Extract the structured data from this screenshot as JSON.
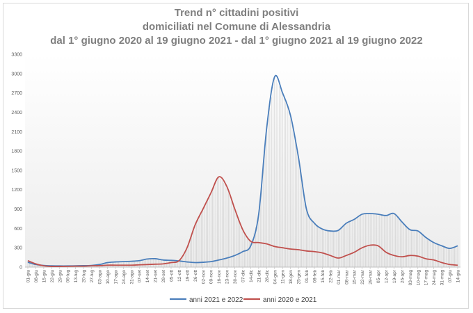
{
  "chart_data": {
    "type": "line",
    "title": [
      "Trend n° cittadini positivi",
      "domiciliati nel Comune di Alessandria",
      "dal 1° giugno 2020 al 19 giugno 2021 - dal 1° giugno 2021 al 19 giugno 2022"
    ],
    "xlabel": "",
    "ylabel": "",
    "ylim": [
      0,
      3300
    ],
    "yticks": [
      0,
      300,
      600,
      900,
      1200,
      1500,
      1800,
      2100,
      2400,
      2700,
      3000,
      3300
    ],
    "categories": [
      "01-giu",
      "08-giu",
      "15-giu",
      "22-giu",
      "29-giu",
      "06-lug",
      "13-lug",
      "20-lug",
      "27-lug",
      "03-ago",
      "10-ago",
      "17-ago",
      "24-ago",
      "31-ago",
      "07-set",
      "14-set",
      "21-set",
      "28-set",
      "05-ott",
      "12-ott",
      "19-ott",
      "26-ott",
      "02-nov",
      "09-nov",
      "16-nov",
      "23-nov",
      "30-nov",
      "07-dic",
      "14-dic",
      "21-dic",
      "28-dic",
      "04-gen",
      "11-gen",
      "18-gen",
      "25-gen",
      "01-feb",
      "08-feb",
      "15-feb",
      "22-feb",
      "01-mar",
      "08-mar",
      "15-mar",
      "22-mar",
      "29-mar",
      "05-apr",
      "12-apr",
      "19-apr",
      "26-apr",
      "03-mag",
      "10-mag",
      "17-mag",
      "24-mag",
      "31-mag",
      "07-giu",
      "14-giu"
    ],
    "series": [
      {
        "name": "anni 2021 e 2022",
        "color": "#4a7ebb",
        "values": [
          75,
          40,
          25,
          20,
          18,
          18,
          20,
          22,
          25,
          40,
          70,
          80,
          85,
          90,
          100,
          125,
          130,
          110,
          105,
          95,
          80,
          70,
          75,
          85,
          110,
          140,
          180,
          240,
          330,
          820,
          2150,
          2950,
          2700,
          2350,
          1700,
          900,
          680,
          590,
          560,
          570,
          680,
          740,
          820,
          830,
          820,
          800,
          830,
          700,
          580,
          560,
          460,
          380,
          330,
          290,
          330
        ]
      },
      {
        "name": "anni 2020 e 2021",
        "color": "#c0504d",
        "values": [
          100,
          50,
          20,
          10,
          10,
          12,
          15,
          15,
          20,
          22,
          30,
          30,
          30,
          30,
          35,
          40,
          45,
          50,
          70,
          100,
          300,
          650,
          900,
          1150,
          1400,
          1250,
          900,
          580,
          400,
          380,
          360,
          320,
          300,
          280,
          270,
          250,
          240,
          220,
          180,
          140,
          180,
          230,
          300,
          340,
          330,
          230,
          180,
          160,
          180,
          170,
          130,
          110,
          70,
          40,
          30
        ]
      }
    ],
    "legend_position": "bottom-center",
    "grid": false
  }
}
